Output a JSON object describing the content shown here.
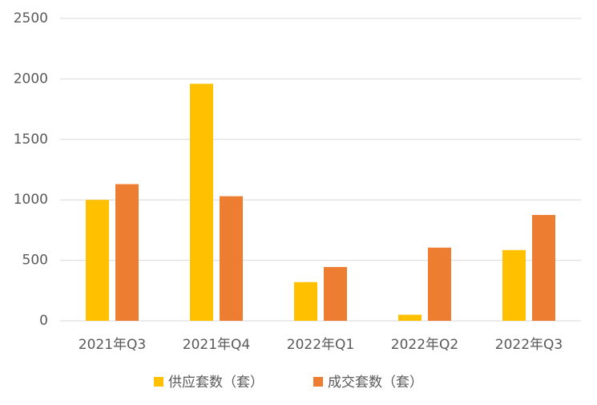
{
  "chart_data": {
    "type": "bar",
    "categories": [
      "2021年Q3",
      "2021年Q4",
      "2022年Q1",
      "2022年Q2",
      "2022年Q3"
    ],
    "series": [
      {
        "name": "供应套数（套）",
        "color": "#ffc000",
        "values": [
          1000,
          1960,
          320,
          50,
          585
        ]
      },
      {
        "name": "成交套数（套）",
        "color": "#ed7d31",
        "values": [
          1130,
          1030,
          445,
          605,
          875
        ]
      }
    ],
    "ylim": [
      0,
      2500
    ],
    "yticks": [
      0,
      500,
      1000,
      1500,
      2000,
      2500
    ],
    "grid": true,
    "legend": "bottom"
  }
}
